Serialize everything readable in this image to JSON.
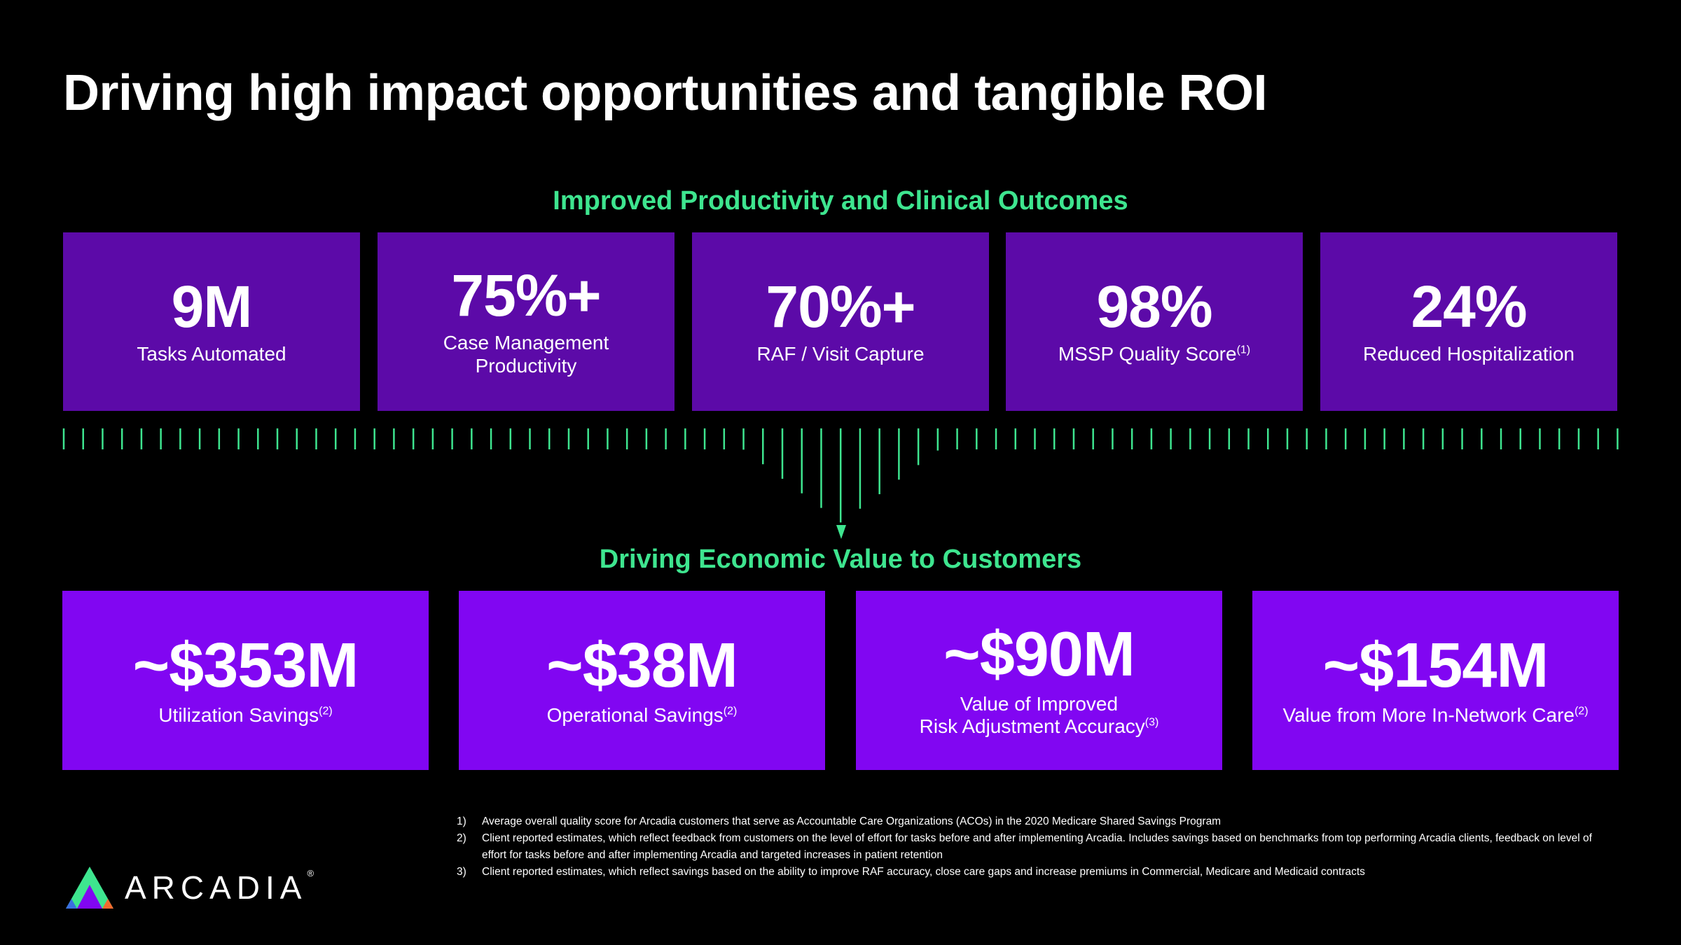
{
  "title": "Driving high impact opportunities and tangible ROI",
  "sections": {
    "productivity": "Improved Productivity and Clinical Outcomes",
    "economic": "Driving Economic Value to Customers"
  },
  "productivity_metrics": [
    {
      "value": "9M",
      "label": "Tasks Automated",
      "note": ""
    },
    {
      "value": "75%+",
      "label": "Case Management\nProductivity",
      "note": ""
    },
    {
      "value": "70%+",
      "label": "RAF / Visit Capture",
      "note": ""
    },
    {
      "value": "98%",
      "label": "MSSP Quality Score",
      "note": "(1)"
    },
    {
      "value": "24%",
      "label": "Reduced Hospitalization",
      "note": ""
    }
  ],
  "economic_metrics": [
    {
      "value": "~$353M",
      "label": "Utilization Savings",
      "note": "(2)"
    },
    {
      "value": "~$38M",
      "label": "Operational Savings",
      "note": "(2)"
    },
    {
      "value": "~$90M",
      "label": "Value of Improved\nRisk Adjustment Accuracy",
      "note": "(3)"
    },
    {
      "value": "~$154M",
      "label": "Value from More In-Network Care",
      "note": "(2)"
    }
  ],
  "footnotes": [
    {
      "num": "1)",
      "text": "Average overall quality score for Arcadia customers that serve as Accountable Care Organizations (ACOs) in the 2020 Medicare Shared Savings Program"
    },
    {
      "num": "2)",
      "text": "Client reported estimates, which reflect feedback from customers on the level of effort for tasks before and after implementing Arcadia. Includes savings based on benchmarks from top performing Arcadia clients, feedback on level of effort for tasks before and after implementing Arcadia and targeted increases in patient retention"
    },
    {
      "num": "3)",
      "text": "Client reported estimates, which reflect savings based on the ability to improve RAF accuracy, close care gaps and increase premiums in Commercial, Medicare and Medicaid contracts"
    }
  ],
  "logo": {
    "text": "ARCADIA",
    "mark": "®"
  },
  "colors": {
    "background": "#000000",
    "accent_green": "#3ee58f",
    "top_box": "#5c0aa8",
    "bottom_box": "#8106f2"
  },
  "icons": {
    "logo_mark": "triangle-logo-icon",
    "arrow": "arrow-down-icon"
  }
}
